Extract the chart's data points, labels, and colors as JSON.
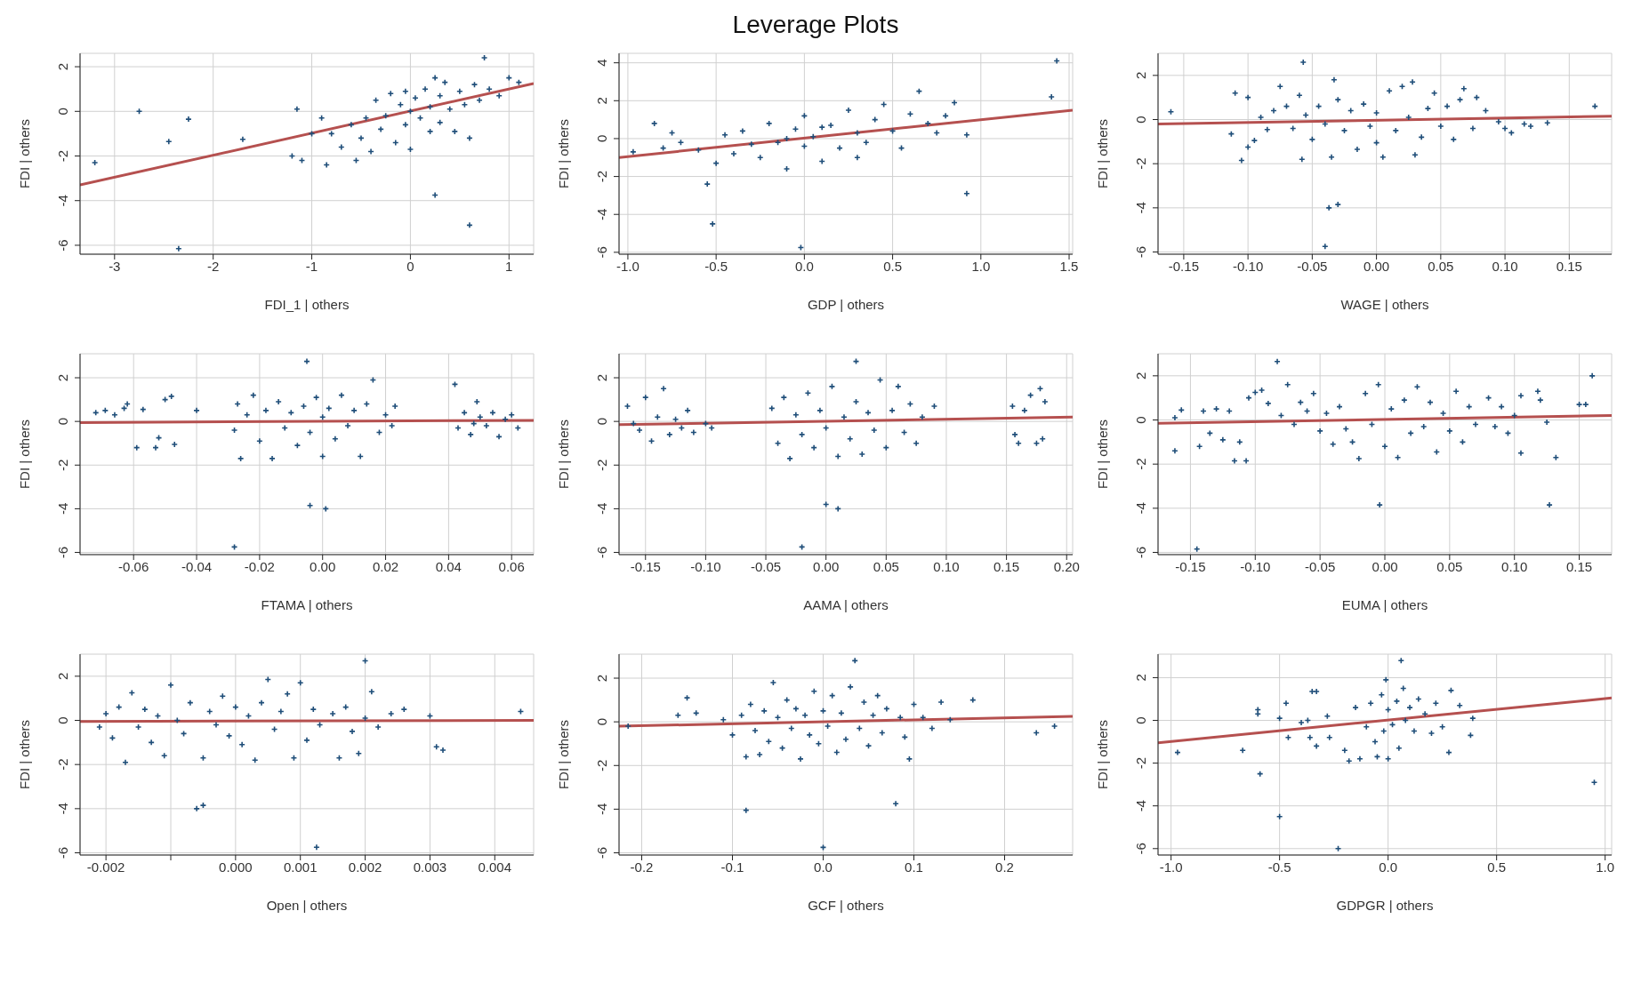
{
  "chart_data": [
    {
      "type": "scatter",
      "xlabel": "FDI_1 | others",
      "ylabel": "FDI  | others",
      "grid": true,
      "xlim": [
        -3.35,
        1.25
      ],
      "xticks": [
        -3,
        -2,
        -1,
        0,
        1
      ],
      "ylim": [
        -6.4,
        2.6
      ],
      "yticks": [
        -6,
        -4,
        -2,
        0,
        2
      ],
      "series": [
        {
          "type": "scatter",
          "marker": "cross",
          "color": "#1f4e79",
          "x": [
            -3.2,
            -2.75,
            -2.45,
            -2.25,
            -2.35,
            -1.7,
            0.25,
            0.6,
            0.75,
            -1.2,
            -1.15,
            -1.1,
            -1.0,
            -0.9,
            -0.85,
            -0.8,
            -0.7,
            -0.6,
            -0.55,
            -0.5,
            -0.45,
            -0.4,
            -0.35,
            -0.3,
            -0.25,
            -0.2,
            -0.15,
            -0.1,
            -0.05,
            0.0,
            0.0,
            0.05,
            0.1,
            0.15,
            0.2,
            0.25,
            0.3,
            0.3,
            0.35,
            0.4,
            0.45,
            0.5,
            0.55,
            0.6,
            0.65,
            0.7,
            0.8,
            0.9,
            1.0,
            1.1,
            0.2,
            -0.05
          ],
          "values": [
            -2.3,
            0.0,
            -1.35,
            -0.35,
            -6.15,
            -1.25,
            -3.75,
            -5.1,
            2.4,
            -2.0,
            0.1,
            -2.2,
            -1.0,
            -0.3,
            -2.4,
            -1.0,
            -1.6,
            -0.6,
            -2.2,
            -1.2,
            -0.3,
            -1.8,
            0.5,
            -0.8,
            -0.2,
            0.8,
            -1.4,
            0.3,
            -0.6,
            -1.7,
            0.0,
            0.6,
            -0.3,
            1.0,
            0.2,
            1.5,
            -0.5,
            0.7,
            1.3,
            0.1,
            -0.9,
            0.9,
            0.3,
            -1.2,
            1.2,
            0.5,
            1.0,
            0.7,
            1.5,
            1.3,
            -0.9,
            0.9
          ]
        },
        {
          "type": "line",
          "color": "#b5504f",
          "x": [
            -3.35,
            1.25
          ],
          "values": [
            -3.3,
            1.25
          ]
        }
      ]
    },
    {
      "type": "scatter",
      "title": "Leverage Plots",
      "xlabel": "GDP | others",
      "ylabel": "FDI  | others",
      "grid": true,
      "xlim": [
        -1.05,
        1.52
      ],
      "xticks": [
        {
          "value": -1,
          "label": "-1.0"
        },
        -0.5,
        {
          "value": 0,
          "label": "0.0"
        },
        0.5,
        {
          "value": 1,
          "label": "1.0"
        },
        1.5
      ],
      "ylim": [
        -6.1,
        4.5
      ],
      "yticks": [
        -6,
        -4,
        -2,
        0,
        2,
        4
      ],
      "series": [
        {
          "type": "scatter",
          "marker": "cross",
          "color": "#1f4e79",
          "x": [
            1.43,
            1.4,
            0.92,
            0.92,
            0.85,
            -0.52,
            -0.02,
            -0.85,
            -0.97,
            -0.8,
            -0.75,
            -0.7,
            -0.6,
            -0.55,
            -0.5,
            -0.45,
            -0.4,
            -0.35,
            -0.3,
            -0.25,
            -0.2,
            -0.15,
            -0.1,
            -0.05,
            0.0,
            0.0,
            0.05,
            0.1,
            0.15,
            0.2,
            0.25,
            0.3,
            0.35,
            0.4,
            0.45,
            0.5,
            0.55,
            0.6,
            0.65,
            0.7,
            0.75,
            0.8,
            0.3,
            -0.1,
            0.1
          ],
          "values": [
            4.1,
            2.2,
            -2.9,
            0.2,
            1.9,
            -4.5,
            -5.75,
            0.8,
            -0.7,
            -0.5,
            0.3,
            -0.2,
            -0.6,
            -2.4,
            -1.3,
            0.2,
            -0.8,
            0.4,
            -0.3,
            -1.0,
            0.8,
            -0.2,
            -1.6,
            0.5,
            -0.4,
            1.2,
            0.1,
            -1.2,
            0.7,
            -0.5,
            1.5,
            0.3,
            -0.2,
            1.0,
            1.8,
            0.4,
            -0.5,
            1.3,
            2.5,
            0.8,
            0.3,
            1.2,
            -1.0,
            0.0,
            0.6
          ]
        },
        {
          "type": "line",
          "color": "#b5504f",
          "x": [
            -1.05,
            1.52
          ],
          "values": [
            -1.0,
            1.5
          ]
        }
      ]
    },
    {
      "type": "scatter",
      "xlabel": "WAGE | others",
      "ylabel": "FDI  | others",
      "grid": true,
      "xlim": [
        -0.17,
        0.183
      ],
      "xticks": [
        {
          "value": -0.15,
          "label": "-0.15"
        },
        {
          "value": -0.1,
          "label": "-0.10"
        },
        {
          "value": -0.05,
          "label": "-0.05"
        },
        {
          "value": 0,
          "label": "0.00"
        },
        {
          "value": 0.05,
          "label": "0.05"
        },
        {
          "value": 0.1,
          "label": "0.10"
        },
        {
          "value": 0.15,
          "label": "0.15"
        }
      ],
      "ylim": [
        -6.1,
        3.0
      ],
      "yticks": [
        -6,
        -4,
        -2,
        0,
        2
      ],
      "series": [
        {
          "type": "scatter",
          "marker": "cross",
          "color": "#1f4e79",
          "x": [
            -0.16,
            -0.04,
            -0.037,
            -0.03,
            0.17,
            -0.057,
            -0.033,
            0.133,
            0.12,
            -0.105,
            -0.113,
            -0.11,
            -0.1,
            -0.1,
            -0.095,
            -0.09,
            -0.085,
            -0.08,
            -0.075,
            -0.07,
            -0.065,
            -0.06,
            -0.058,
            -0.055,
            -0.05,
            -0.045,
            -0.04,
            -0.035,
            -0.03,
            -0.025,
            -0.02,
            -0.015,
            -0.01,
            -0.005,
            0.0,
            0.0,
            0.005,
            0.01,
            0.015,
            0.02,
            0.025,
            0.03,
            0.028,
            0.035,
            0.04,
            0.045,
            0.05,
            0.055,
            0.06,
            0.065,
            0.068,
            0.075,
            0.078,
            0.085,
            0.095,
            0.1,
            0.105,
            0.115
          ],
          "values": [
            0.35,
            -5.75,
            -4.0,
            -3.85,
            0.6,
            2.6,
            1.8,
            -0.15,
            -0.3,
            -1.85,
            -0.65,
            1.2,
            1.0,
            -1.25,
            -0.95,
            0.1,
            -0.45,
            0.4,
            1.5,
            0.6,
            -0.4,
            1.1,
            -1.8,
            0.2,
            -0.9,
            0.6,
            -0.2,
            -1.7,
            0.9,
            -0.5,
            0.4,
            -1.35,
            0.7,
            -0.3,
            0.3,
            -1.05,
            -1.7,
            1.3,
            -0.5,
            1.5,
            0.1,
            -1.6,
            1.7,
            -0.8,
            0.5,
            1.2,
            -0.3,
            0.6,
            -0.9,
            0.9,
            1.4,
            -0.4,
            1.0,
            0.4,
            -0.1,
            -0.4,
            -0.6,
            -0.2
          ]
        },
        {
          "type": "line",
          "color": "#b5504f",
          "x": [
            -0.17,
            0.183
          ],
          "values": [
            -0.2,
            0.15
          ]
        }
      ]
    },
    {
      "type": "scatter",
      "xlabel": "FTAMA | others",
      "ylabel": "FDI  | others",
      "grid": true,
      "xlim": [
        -0.077,
        0.067
      ],
      "xticks": [
        -0.06,
        -0.04,
        -0.02,
        {
          "value": 0,
          "label": "0.00"
        },
        0.02,
        0.04,
        0.06
      ],
      "ylim": [
        -6.1,
        3.1
      ],
      "yticks": [
        -6,
        -4,
        -2,
        0,
        2
      ],
      "series": [
        {
          "type": "scatter",
          "marker": "cross",
          "color": "#1f4e79",
          "x": [
            -0.028,
            -0.005,
            -0.004,
            0.001,
            -0.072,
            -0.069,
            -0.066,
            -0.063,
            -0.062,
            -0.059,
            -0.057,
            -0.053,
            -0.052,
            -0.05,
            -0.048,
            -0.047,
            -0.04,
            0.042,
            0.043,
            0.045,
            0.047,
            0.049,
            0.05,
            0.052,
            0.054,
            0.056,
            0.058,
            0.06,
            0.062,
            0.048,
            -0.028,
            -0.027,
            -0.026,
            -0.024,
            -0.022,
            -0.02,
            -0.018,
            -0.016,
            -0.014,
            -0.012,
            -0.01,
            -0.008,
            -0.006,
            -0.004,
            -0.002,
            0.0,
            0.0,
            0.002,
            0.004,
            0.006,
            0.008,
            0.01,
            0.012,
            0.014,
            0.016,
            0.018,
            0.02,
            0.022,
            0.023
          ],
          "values": [
            -5.75,
            2.75,
            -3.85,
            -4.0,
            0.4,
            0.5,
            0.3,
            0.6,
            0.8,
            -1.2,
            0.55,
            -1.2,
            -0.75,
            1.0,
            1.15,
            -1.05,
            0.5,
            1.7,
            -0.3,
            0.4,
            -0.6,
            0.9,
            0.2,
            -0.2,
            0.4,
            -0.7,
            0.1,
            0.3,
            -0.3,
            -0.1,
            -0.4,
            0.8,
            -1.7,
            0.3,
            1.2,
            -0.9,
            0.5,
            -1.7,
            0.9,
            -0.3,
            0.4,
            -1.1,
            0.7,
            -0.5,
            1.1,
            0.2,
            -1.6,
            0.6,
            -0.8,
            1.2,
            -0.2,
            0.5,
            -1.6,
            0.8,
            1.9,
            -0.5,
            0.3,
            -0.2,
            0.7
          ]
        },
        {
          "type": "line",
          "color": "#b5504f",
          "x": [
            -0.077,
            0.067
          ],
          "values": [
            -0.05,
            0.05
          ]
        }
      ]
    },
    {
      "type": "scatter",
      "xlabel": "AAMA | others",
      "ylabel": "FDI  | others",
      "grid": true,
      "xlim": [
        -0.172,
        0.205
      ],
      "xticks": [
        {
          "value": -0.15,
          "label": "-0.15"
        },
        {
          "value": -0.1,
          "label": "-0.10"
        },
        {
          "value": -0.05,
          "label": "-0.05"
        },
        {
          "value": 0,
          "label": "0.00"
        },
        {
          "value": 0.05,
          "label": "0.05"
        },
        {
          "value": 0.1,
          "label": "0.10"
        },
        {
          "value": 0.15,
          "label": "0.15"
        },
        {
          "value": 0.2,
          "label": "0.20"
        }
      ],
      "ylim": [
        -6.1,
        3.1
      ],
      "yticks": [
        -6,
        -4,
        -2,
        0,
        2
      ],
      "series": [
        {
          "type": "scatter",
          "marker": "cross",
          "color": "#1f4e79",
          "x": [
            -0.165,
            -0.16,
            -0.155,
            -0.15,
            -0.145,
            -0.14,
            -0.135,
            -0.13,
            -0.125,
            -0.12,
            -0.115,
            -0.11,
            -0.1,
            -0.095,
            -0.02,
            0.0,
            0.01,
            0.025,
            -0.045,
            -0.04,
            -0.035,
            -0.03,
            -0.025,
            -0.02,
            -0.015,
            -0.01,
            -0.005,
            0.0,
            0.005,
            0.01,
            0.015,
            0.02,
            0.025,
            0.03,
            0.035,
            0.04,
            0.045,
            0.05,
            0.055,
            0.06,
            0.065,
            0.07,
            0.075,
            0.08,
            0.09,
            0.155,
            0.157,
            0.16,
            0.165,
            0.17,
            0.175,
            0.178,
            0.18,
            0.182
          ],
          "values": [
            0.7,
            -0.1,
            -0.4,
            1.1,
            -0.9,
            0.2,
            1.5,
            -0.6,
            0.1,
            -0.3,
            0.5,
            -0.5,
            -0.1,
            -0.3,
            -5.75,
            -3.8,
            -4.0,
            2.75,
            0.6,
            -1.0,
            1.1,
            -1.7,
            0.3,
            -0.6,
            1.3,
            -1.2,
            0.5,
            -0.3,
            1.6,
            -1.6,
            0.2,
            -0.8,
            0.9,
            -1.5,
            0.4,
            -0.4,
            1.9,
            -1.2,
            0.5,
            1.6,
            -0.5,
            0.8,
            -1.0,
            0.2,
            0.7,
            0.7,
            -0.6,
            -1.0,
            0.5,
            1.2,
            -1.0,
            1.5,
            -0.8,
            0.9
          ]
        },
        {
          "type": "line",
          "color": "#b5504f",
          "x": [
            -0.172,
            0.205
          ],
          "values": [
            -0.15,
            0.2
          ]
        }
      ]
    },
    {
      "type": "scatter",
      "xlabel": "EUMA | others",
      "ylabel": "FDI  | others",
      "grid": true,
      "xlim": [
        -0.175,
        0.175
      ],
      "xticks": [
        {
          "value": -0.15,
          "label": "-0.15"
        },
        {
          "value": -0.1,
          "label": "-0.10"
        },
        {
          "value": -0.05,
          "label": "-0.05"
        },
        {
          "value": 0,
          "label": "0.00"
        },
        {
          "value": 0.05,
          "label": "0.05"
        },
        {
          "value": 0.1,
          "label": "0.10"
        },
        {
          "value": 0.15,
          "label": "0.15"
        }
      ],
      "ylim": [
        -6.1,
        3.0
      ],
      "yticks": [
        -6,
        -4,
        -2,
        0,
        2
      ],
      "series": [
        {
          "type": "scatter",
          "marker": "cross",
          "color": "#1f4e79",
          "x": [
            -0.162,
            -0.162,
            -0.157,
            -0.145,
            -0.143,
            -0.14,
            -0.135,
            -0.13,
            -0.125,
            -0.12,
            -0.116,
            -0.112,
            -0.107,
            -0.105,
            -0.1,
            -0.095,
            -0.09,
            -0.083,
            -0.08,
            -0.075,
            -0.07,
            -0.065,
            -0.06,
            -0.055,
            -0.05,
            -0.045,
            -0.04,
            -0.035,
            -0.03,
            -0.025,
            -0.02,
            -0.015,
            -0.01,
            -0.005,
            -0.004,
            0.0,
            0.005,
            0.01,
            0.015,
            0.02,
            0.025,
            0.03,
            0.035,
            0.04,
            0.045,
            0.05,
            0.055,
            0.06,
            0.065,
            0.07,
            0.08,
            0.085,
            0.09,
            0.095,
            0.1,
            0.105,
            0.105,
            0.118,
            0.12,
            0.125,
            0.127,
            0.132,
            0.15,
            0.155,
            0.16
          ],
          "values": [
            -1.4,
            0.1,
            0.45,
            -5.85,
            -1.2,
            0.4,
            -0.6,
            0.5,
            -0.9,
            0.4,
            -1.85,
            -1.0,
            -1.85,
            1.0,
            1.25,
            1.35,
            0.75,
            2.65,
            0.2,
            1.6,
            -0.2,
            0.8,
            0.4,
            1.2,
            -0.5,
            0.3,
            -1.1,
            0.6,
            -0.4,
            -1.0,
            -1.75,
            1.2,
            -0.2,
            1.6,
            -3.85,
            -1.2,
            0.5,
            -1.7,
            0.9,
            -0.6,
            1.5,
            -0.3,
            0.8,
            -1.45,
            0.3,
            -0.5,
            1.3,
            -1.0,
            0.6,
            -0.2,
            1.0,
            -0.3,
            0.6,
            -0.6,
            0.2,
            1.1,
            -1.5,
            1.3,
            0.9,
            -0.1,
            -3.85,
            -1.7,
            0.7,
            0.7,
            2.0
          ]
        },
        {
          "type": "line",
          "color": "#b5504f",
          "x": [
            -0.175,
            0.175
          ],
          "values": [
            -0.15,
            0.2
          ]
        }
      ]
    },
    {
      "type": "scatter",
      "xlabel": "Open | others",
      "ylabel": "FDI  | others",
      "grid": true,
      "xlim": [
        -0.0024,
        0.0046
      ],
      "xticks": [
        {
          "value": -0.002,
          "label": "-0.002"
        },
        {
          "value": -0.001,
          "label": null
        },
        {
          "value": 0,
          "label": "0.000"
        },
        {
          "value": 0.001,
          "label": "0.001"
        },
        {
          "value": 0.002,
          "label": "0.002"
        },
        {
          "value": 0.003,
          "label": "0.003"
        },
        {
          "value": 0.004,
          "label": "0.004"
        }
      ],
      "ylim": [
        -6.1,
        3.0
      ],
      "yticks": [
        -6,
        -4,
        -2,
        0,
        2
      ],
      "series": [
        {
          "type": "scatter",
          "marker": "cross",
          "color": "#1f4e79",
          "x": [
            -0.0021,
            -0.002,
            -0.0019,
            -0.0018,
            -0.0017,
            -0.0016,
            -0.0015,
            -0.0014,
            -0.0013,
            -0.0012,
            -0.0011,
            -0.001,
            -0.0009,
            -0.0008,
            -0.0007,
            -0.0006,
            -0.0005,
            -0.0005,
            -0.0004,
            -0.0003,
            -0.0002,
            -0.0001,
            0.0,
            0.0001,
            0.0002,
            0.0003,
            0.0004,
            0.0005,
            0.0006,
            0.0007,
            0.0008,
            0.0009,
            0.001,
            0.0011,
            0.0012,
            0.00125,
            0.0013,
            0.0015,
            0.0016,
            0.0017,
            0.0018,
            0.0019,
            0.002,
            0.002,
            0.0021,
            0.0022,
            0.0024,
            0.0026,
            0.003,
            0.0031,
            0.0032,
            0.0044
          ],
          "values": [
            -0.3,
            0.3,
            -0.8,
            0.6,
            -1.9,
            1.25,
            -0.3,
            0.5,
            -1.0,
            0.2,
            -1.6,
            1.6,
            0.0,
            -0.6,
            0.8,
            -4.0,
            -3.85,
            -1.7,
            0.4,
            -0.2,
            1.1,
            -0.7,
            0.6,
            -1.1,
            0.2,
            -1.8,
            0.8,
            1.85,
            -0.4,
            0.4,
            1.2,
            -1.7,
            1.7,
            -0.9,
            0.5,
            -5.75,
            -0.2,
            0.3,
            -1.7,
            0.6,
            -0.5,
            -1.5,
            2.7,
            0.1,
            1.3,
            -0.3,
            0.3,
            0.5,
            0.2,
            -1.2,
            -1.35,
            0.4
          ]
        },
        {
          "type": "line",
          "color": "#b5504f",
          "x": [
            -0.0024,
            0.0046
          ],
          "values": [
            -0.05,
            0.0
          ]
        }
      ]
    },
    {
      "type": "scatter",
      "xlabel": "GCF | others",
      "ylabel": "FDI  | others",
      "grid": true,
      "xlim": [
        -0.225,
        0.275
      ],
      "xticks": [
        -0.2,
        -0.1,
        {
          "value": 0,
          "label": "0.0"
        },
        0.1,
        0.2
      ],
      "ylim": [
        -6.1,
        3.1
      ],
      "yticks": [
        -6,
        -4,
        -2,
        0,
        2
      ],
      "series": [
        {
          "type": "scatter",
          "marker": "cross",
          "color": "#1f4e79",
          "x": [
            -0.215,
            -0.16,
            -0.15,
            -0.14,
            -0.11,
            -0.1,
            -0.09,
            -0.085,
            -0.085,
            -0.08,
            -0.075,
            -0.07,
            -0.065,
            -0.06,
            -0.055,
            -0.05,
            -0.045,
            -0.04,
            -0.035,
            -0.03,
            -0.025,
            -0.02,
            -0.015,
            -0.01,
            -0.005,
            0.0,
            0.0,
            0.005,
            0.01,
            0.015,
            0.02,
            0.025,
            0.03,
            0.035,
            0.04,
            0.045,
            0.05,
            0.055,
            0.06,
            0.065,
            0.07,
            0.08,
            0.085,
            0.09,
            0.095,
            0.1,
            0.11,
            0.12,
            0.13,
            0.14,
            0.165,
            0.235,
            0.255
          ],
          "values": [
            -0.2,
            0.3,
            1.1,
            0.4,
            0.1,
            -0.6,
            0.3,
            -4.05,
            -1.6,
            0.8,
            -0.4,
            -1.5,
            0.5,
            -0.9,
            1.8,
            0.2,
            -1.2,
            1.0,
            -0.3,
            0.6,
            -1.7,
            0.3,
            -0.6,
            1.4,
            -1.0,
            -5.75,
            0.5,
            -0.2,
            1.2,
            -1.4,
            0.4,
            -0.8,
            1.6,
            2.8,
            -0.3,
            0.9,
            -1.1,
            0.3,
            1.2,
            -0.5,
            0.6,
            -3.75,
            0.2,
            -0.7,
            -1.7,
            0.8,
            0.2,
            -0.3,
            0.9,
            0.1,
            1.0,
            -0.5,
            -0.2
          ]
        },
        {
          "type": "line",
          "color": "#b5504f",
          "x": [
            -0.225,
            0.275
          ],
          "values": [
            -0.2,
            0.25
          ]
        }
      ]
    },
    {
      "type": "scatter",
      "xlabel": "GDPGR | others",
      "ylabel": "FDI  | others",
      "grid": true,
      "xlim": [
        -1.06,
        1.03
      ],
      "xticks": [
        {
          "value": -1,
          "label": "-1.0"
        },
        -0.5,
        {
          "value": 0,
          "label": "0.0"
        },
        0.5,
        {
          "value": 1,
          "label": "1.0"
        }
      ],
      "ylim": [
        -6.3,
        3.1
      ],
      "yticks": [
        -6,
        -4,
        -2,
        0,
        2
      ],
      "series": [
        {
          "type": "scatter",
          "marker": "cross",
          "color": "#1f4e79",
          "x": [
            -0.97,
            -0.67,
            -0.6,
            -0.6,
            -0.59,
            -0.5,
            -0.5,
            -0.47,
            -0.46,
            -0.4,
            -0.37,
            -0.36,
            -0.35,
            -0.33,
            -0.33,
            -0.28,
            -0.27,
            -0.23,
            -0.2,
            -0.18,
            -0.15,
            -0.13,
            -0.1,
            -0.08,
            -0.06,
            -0.05,
            -0.03,
            -0.02,
            -0.01,
            0.0,
            0.0,
            0.02,
            0.04,
            0.05,
            0.06,
            0.07,
            0.08,
            0.1,
            0.12,
            0.14,
            0.17,
            0.2,
            0.22,
            0.25,
            0.28,
            0.29,
            0.33,
            0.38,
            0.39,
            0.95
          ],
          "values": [
            -1.5,
            -1.4,
            0.5,
            0.3,
            -2.5,
            -4.5,
            0.1,
            0.8,
            -0.8,
            -0.1,
            0.0,
            -0.8,
            1.35,
            1.35,
            -1.2,
            0.2,
            -0.8,
            -6.0,
            -1.4,
            -1.9,
            0.6,
            -1.8,
            -0.3,
            0.8,
            -1.0,
            -1.7,
            1.2,
            -0.5,
            1.9,
            -1.8,
            0.5,
            -0.2,
            0.9,
            -1.3,
            2.8,
            1.5,
            0.0,
            0.6,
            -0.5,
            1.0,
            0.3,
            -0.6,
            0.8,
            -0.3,
            -1.5,
            1.4,
            0.7,
            -0.7,
            0.1,
            -2.9
          ]
        },
        {
          "type": "line",
          "color": "#b5504f",
          "x": [
            -1.06,
            1.03
          ],
          "values": [
            -1.05,
            1.05
          ]
        }
      ]
    }
  ]
}
